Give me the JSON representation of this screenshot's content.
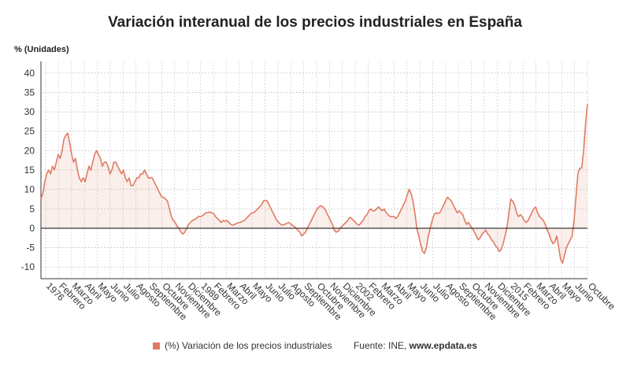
{
  "chart_data": {
    "type": "area",
    "title": "Variación interanual de los precios industriales en España",
    "ylabel": "% (Unidades)",
    "xlabel": "",
    "ylim": [
      -13,
      43
    ],
    "yticks": [
      -10,
      -5,
      0,
      5,
      10,
      15,
      20,
      25,
      30,
      35,
      40
    ],
    "grid": true,
    "legend_position": "bottom",
    "x_tick_labels": [
      "1976",
      "Febrero",
      "Marzo",
      "Abril",
      "Mayo",
      "Junio",
      "Julio",
      "Agosto",
      "Septiembre",
      "Octubre",
      "Noviembre",
      "Diciembre",
      "1989",
      "Febrero",
      "Marzo",
      "Abril",
      "Mayo",
      "Junio",
      "Julio",
      "Agosto",
      "Septiembre",
      "Octubre",
      "Noviembre",
      "Diciembre",
      "2002",
      "Febrero",
      "Marzo",
      "Abril",
      "Mayo",
      "Junio",
      "Julio",
      "Agosto",
      "Septiembre",
      "Octubre",
      "Noviembre",
      "Diciembre",
      "2015",
      "Febrero",
      "Marzo",
      "Abril",
      "Mayo",
      "Junio",
      "Octubre"
    ],
    "series": [
      {
        "name": "(%) Variación de los precios industriales",
        "color": "#e07b63",
        "values": [
          7.5,
          9,
          12,
          14,
          15,
          14,
          16,
          15,
          17,
          19,
          18,
          20,
          23,
          24,
          24.5,
          22,
          19,
          17,
          18,
          15,
          13,
          12,
          13,
          12,
          14,
          16,
          15,
          17,
          19,
          20,
          19,
          18,
          16,
          17,
          17,
          16,
          14,
          15,
          17,
          17,
          16,
          15,
          14,
          15,
          13,
          12,
          13,
          11,
          11,
          12,
          13,
          13,
          14,
          14,
          15,
          14,
          13,
          13,
          13,
          12,
          11,
          10,
          9,
          8,
          8,
          7.5,
          7,
          5,
          3,
          2,
          1.5,
          0.5,
          0,
          -1,
          -1.5,
          -1,
          0,
          1,
          1.5,
          2,
          2.2,
          2.5,
          3,
          3,
          3.2,
          3.5,
          4,
          4,
          4.2,
          4,
          3.8,
          3,
          2.5,
          2,
          1.5,
          2,
          1.8,
          2,
          1.5,
          1,
          0.8,
          1,
          1.2,
          1.5,
          1.5,
          1.8,
          2,
          2.5,
          3,
          3.5,
          4,
          4,
          4.5,
          5,
          5.5,
          6,
          7,
          7.2,
          7,
          6,
          5,
          4,
          3,
          2,
          1.5,
          1,
          0.8,
          1,
          1.2,
          1.5,
          1.2,
          0.8,
          0.5,
          0,
          -0.5,
          -1,
          -2,
          -1.5,
          -1,
          0,
          1,
          2,
          3,
          4,
          5,
          5.5,
          5.8,
          5.5,
          5,
          4,
          3,
          2,
          1,
          -0.5,
          -1,
          -0.8,
          0,
          0.5,
          1,
          1.5,
          2,
          2.8,
          2.5,
          2,
          1.5,
          1,
          0.8,
          1.5,
          2,
          3,
          3.5,
          4.5,
          5,
          4.5,
          4.5,
          5,
          5.5,
          5,
          4.5,
          5,
          4,
          3.5,
          3,
          3,
          3,
          2.5,
          3,
          4,
          5,
          6,
          7,
          8.5,
          10,
          9,
          7,
          4,
          0,
          -2,
          -4,
          -6,
          -6.5,
          -5,
          -2,
          0,
          2,
          3.5,
          4,
          3.8,
          4,
          5,
          6,
          7,
          8,
          7.5,
          7,
          6,
          5,
          4,
          4.5,
          4,
          3.5,
          2,
          1,
          1.5,
          0.5,
          0,
          -1,
          -2,
          -3,
          -2.5,
          -1.5,
          -1,
          -0.5,
          -1.5,
          -2,
          -3,
          -3.5,
          -4.5,
          -5,
          -6,
          -5.5,
          -4,
          -2,
          0,
          4,
          7.5,
          7,
          6,
          4,
          3,
          3.5,
          3,
          2,
          1.5,
          2,
          3,
          4,
          5,
          5.5,
          4,
          3,
          2.5,
          2,
          1,
          -0.5,
          -1.5,
          -3,
          -4,
          -3.5,
          -2,
          -5,
          -8,
          -9,
          -7,
          -5,
          -4,
          -3,
          -2,
          2,
          8,
          14,
          15.5,
          15.5,
          20,
          27,
          32
        ]
      }
    ],
    "zero_line": true
  },
  "legend": {
    "label": "(%) Variación de los precios industriales",
    "source_prefix": "Fuente: INE,",
    "source_site": "www.epdata.es"
  }
}
